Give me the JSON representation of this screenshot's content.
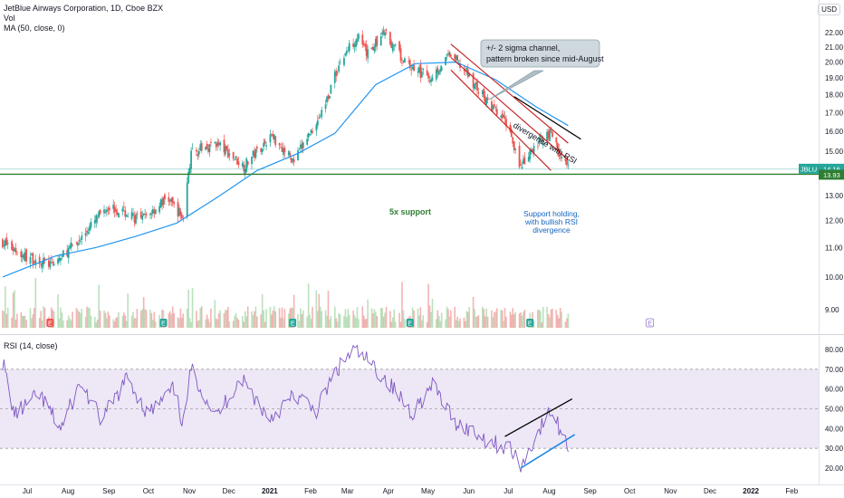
{
  "header": {
    "symbol_title": "JetBlue Airways Corporation, 1D, Cboe BZX",
    "vol_label": "Vol",
    "ma_label": "MA (50, close, 0)",
    "currency": "USD",
    "rsi_label": "RSI (14, close)"
  },
  "colors": {
    "up": "#26a69a",
    "down": "#ef5350",
    "ma": "#2196f3",
    "support": "#2e7d32",
    "channel": "#c62828",
    "rsi_line": "#7e57c2",
    "rsi_band": "#ede7f6",
    "annotation_blue": "#1565c0"
  },
  "annotations": {
    "channel_note_line1": "+/- 2 sigma channel,",
    "channel_note_line2": "pattern broken since mid-August",
    "divergence": "divergence with RSI",
    "support": "5x support",
    "support_hold_line1": "Support holding,",
    "support_hold_line2": "with bullish RSI",
    "support_hold_line3": "divergence"
  },
  "chart_data": [
    {
      "type": "candlestick",
      "title": "JetBlue Airways Corporation, 1D, Cboe BZX",
      "currency": "USD",
      "y_scale": "log",
      "ylim": [
        8.4,
        23.0
      ],
      "y_ticks": [
        "22.00",
        "21.00",
        "20.00",
        "19.00",
        "18.00",
        "17.00",
        "16.00",
        "15.00",
        "14.00",
        "13.00",
        "12.00",
        "11.00",
        "10.00",
        "9.00"
      ],
      "x_ticks": [
        "Jul",
        "Aug",
        "Sep",
        "Oct",
        "Nov",
        "Dec",
        "2021",
        "Feb",
        "Mar",
        "Apr",
        "May",
        "Jun",
        "Jul",
        "Aug",
        "Sep",
        "Oct",
        "Nov",
        "Dec",
        "2022",
        "Feb"
      ],
      "last_price": "14.16",
      "support_level": "13.93",
      "symbol_tag": "JBLU",
      "close_anchors": [
        {
          "date": "2020-06-22",
          "close": 11.2
        },
        {
          "date": "2020-07-08",
          "close": 10.7
        },
        {
          "date": "2020-07-30",
          "close": 10.4
        },
        {
          "date": "2020-08-20",
          "close": 11.3
        },
        {
          "date": "2020-09-10",
          "close": 12.6
        },
        {
          "date": "2020-10-05",
          "close": 12.0
        },
        {
          "date": "2020-10-25",
          "close": 12.9
        },
        {
          "date": "2020-11-06",
          "close": 12.1
        },
        {
          "date": "2020-11-12",
          "close": 14.9
        },
        {
          "date": "2020-12-01",
          "close": 15.4
        },
        {
          "date": "2020-12-22",
          "close": 14.3
        },
        {
          "date": "2021-01-12",
          "close": 15.8
        },
        {
          "date": "2021-01-29",
          "close": 14.5
        },
        {
          "date": "2021-02-20",
          "close": 17.1
        },
        {
          "date": "2021-03-05",
          "close": 20.0
        },
        {
          "date": "2021-03-18",
          "close": 21.8
        },
        {
          "date": "2021-03-25",
          "close": 20.5
        },
        {
          "date": "2021-04-08",
          "close": 22.0
        },
        {
          "date": "2021-04-22",
          "close": 20.0
        },
        {
          "date": "2021-05-12",
          "close": 19.0
        },
        {
          "date": "2021-05-28",
          "close": 20.5
        },
        {
          "date": "2021-06-10",
          "close": 19.2
        },
        {
          "date": "2021-06-25",
          "close": 17.5
        },
        {
          "date": "2021-07-10",
          "close": 16.4
        },
        {
          "date": "2021-07-20",
          "close": 14.2
        },
        {
          "date": "2021-08-05",
          "close": 15.7
        },
        {
          "date": "2021-08-12",
          "close": 16.0
        },
        {
          "date": "2021-08-18",
          "close": 14.9
        },
        {
          "date": "2021-08-25",
          "close": 14.16
        }
      ],
      "ma_50": [
        {
          "date": "2020-06-22",
          "value": 10.0
        },
        {
          "date": "2020-08-01",
          "value": 10.7
        },
        {
          "date": "2020-09-01",
          "value": 11.0
        },
        {
          "date": "2020-10-01",
          "value": 11.4
        },
        {
          "date": "2020-11-01",
          "value": 11.9
        },
        {
          "date": "2020-12-01",
          "value": 12.9
        },
        {
          "date": "2021-01-01",
          "value": 14.1
        },
        {
          "date": "2021-02-01",
          "value": 14.9
        },
        {
          "date": "2021-03-01",
          "value": 15.9
        },
        {
          "date": "2021-04-01",
          "value": 18.6
        },
        {
          "date": "2021-05-01",
          "value": 19.9
        },
        {
          "date": "2021-06-01",
          "value": 20.0
        },
        {
          "date": "2021-07-01",
          "value": 18.9
        },
        {
          "date": "2021-08-01",
          "value": 17.3
        },
        {
          "date": "2021-08-25",
          "value": 16.3
        }
      ],
      "channel_lines": [
        {
          "from": {
            "date": "2021-05-28",
            "price": 21.2
          },
          "to": {
            "date": "2021-08-25",
            "price": 15.4
          }
        },
        {
          "from": {
            "date": "2021-05-28",
            "price": 20.3
          },
          "to": {
            "date": "2021-08-25",
            "price": 14.6
          }
        },
        {
          "from": {
            "date": "2021-05-28",
            "price": 19.5
          },
          "to": {
            "date": "2021-08-12",
            "price": 14.1
          }
        }
      ],
      "price_divergence_line": {
        "from": {
          "date": "2021-07-15",
          "price": 17.9
        },
        "to": {
          "date": "2021-08-25",
          "price": 15.6
        }
      }
    },
    {
      "type": "line",
      "title": "RSI (14, close)",
      "ylim": [
        16,
        84
      ],
      "y_ticks": [
        "80.00",
        "70.00",
        "60.00",
        "50.00",
        "40.00",
        "30.00",
        "20.00"
      ],
      "band": [
        30,
        70
      ],
      "rsi_anchors": [
        {
          "date": "2020-06-20",
          "value": 80
        },
        {
          "date": "2020-07-01",
          "value": 47
        },
        {
          "date": "2020-07-20",
          "value": 57
        },
        {
          "date": "2020-08-05",
          "value": 40
        },
        {
          "date": "2020-08-20",
          "value": 63
        },
        {
          "date": "2020-09-05",
          "value": 44
        },
        {
          "date": "2020-09-25",
          "value": 66
        },
        {
          "date": "2020-10-10",
          "value": 47
        },
        {
          "date": "2020-10-30",
          "value": 60
        },
        {
          "date": "2020-11-06",
          "value": 42
        },
        {
          "date": "2020-11-12",
          "value": 70
        },
        {
          "date": "2020-12-01",
          "value": 46
        },
        {
          "date": "2020-12-20",
          "value": 66
        },
        {
          "date": "2021-01-10",
          "value": 45
        },
        {
          "date": "2021-01-30",
          "value": 57
        },
        {
          "date": "2021-02-15",
          "value": 49
        },
        {
          "date": "2021-03-01",
          "value": 68
        },
        {
          "date": "2021-03-15",
          "value": 80
        },
        {
          "date": "2021-03-28",
          "value": 73
        },
        {
          "date": "2021-04-10",
          "value": 64
        },
        {
          "date": "2021-04-28",
          "value": 48
        },
        {
          "date": "2021-05-15",
          "value": 62
        },
        {
          "date": "2021-05-30",
          "value": 44
        },
        {
          "date": "2021-06-15",
          "value": 38
        },
        {
          "date": "2021-06-28",
          "value": 33
        },
        {
          "date": "2021-07-12",
          "value": 30
        },
        {
          "date": "2021-07-20",
          "value": 20
        },
        {
          "date": "2021-08-01",
          "value": 37
        },
        {
          "date": "2021-08-12",
          "value": 49
        },
        {
          "date": "2021-08-25",
          "value": 31
        }
      ],
      "divergence_lines": [
        {
          "from": {
            "date": "2021-07-08",
            "value": 36
          },
          "to": {
            "date": "2021-08-28",
            "value": 55
          }
        },
        {
          "from": {
            "date": "2021-07-20",
            "value": 20
          },
          "to": {
            "date": "2021-08-30",
            "value": 37
          }
        }
      ]
    }
  ]
}
